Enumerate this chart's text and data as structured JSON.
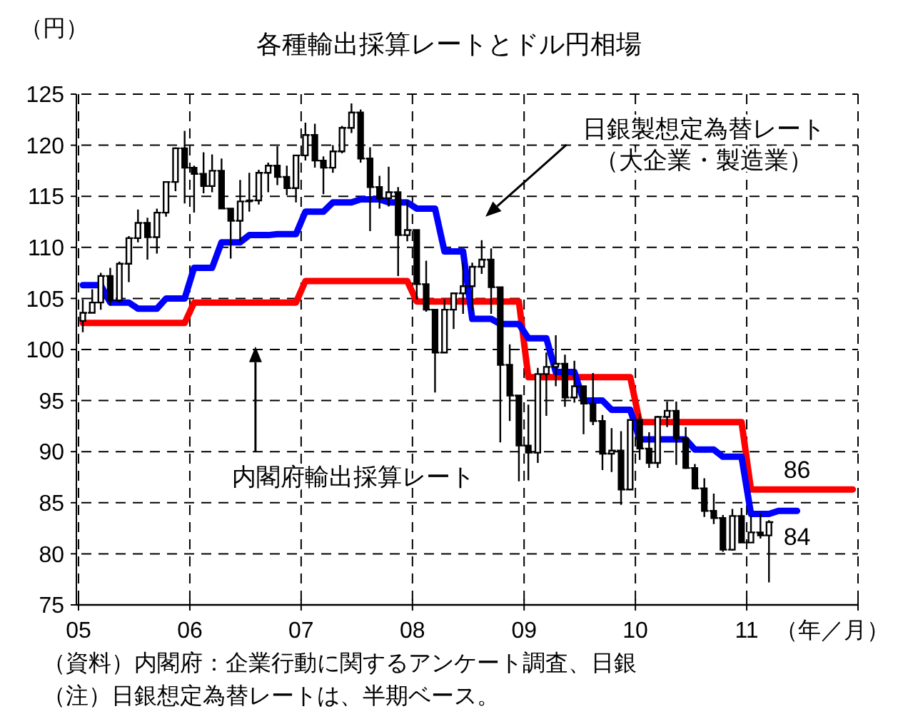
{
  "chart_data": {
    "type": "line",
    "title": "各種輸出採算レートとドル円相場",
    "ylabel": "（円）",
    "xlabel": "（年／月）",
    "x": [
      "2005-01-15",
      "2005-02-15",
      "2005-03-15",
      "2005-04-15",
      "2005-05-15",
      "2005-06-15",
      "2005-07-15",
      "2005-08-15",
      "2005-09-15",
      "2005-10-15",
      "2005-11-15",
      "2005-12-15",
      "2006-01-15",
      "2006-02-15",
      "2006-03-15",
      "2006-04-15",
      "2006-05-15",
      "2006-06-15",
      "2006-07-15",
      "2006-08-15",
      "2006-09-15",
      "2006-10-15",
      "2006-11-15",
      "2006-12-15",
      "2007-01-15",
      "2007-02-15",
      "2007-03-15",
      "2007-04-15",
      "2007-05-15",
      "2007-06-15",
      "2007-07-15",
      "2007-08-15",
      "2007-09-15",
      "2007-10-15",
      "2007-11-15",
      "2007-12-15",
      "2008-01-15",
      "2008-02-15",
      "2008-03-15",
      "2008-04-15",
      "2008-05-15",
      "2008-06-15",
      "2008-07-15",
      "2008-08-15",
      "2008-09-15",
      "2008-10-15",
      "2008-11-15",
      "2008-12-15",
      "2009-01-15",
      "2009-02-15",
      "2009-03-15",
      "2009-04-15",
      "2009-05-15",
      "2009-06-15",
      "2009-07-15",
      "2009-08-15",
      "2009-09-15",
      "2009-10-15",
      "2009-11-15",
      "2009-12-15",
      "2010-01-15",
      "2010-02-15",
      "2010-03-15",
      "2010-04-15",
      "2010-05-15",
      "2010-06-15",
      "2010-07-15",
      "2010-08-15",
      "2010-09-15",
      "2010-10-15",
      "2010-11-15",
      "2010-12-15",
      "2011-01-15",
      "2011-02-15",
      "2011-03-15",
      "2011-04-15",
      "2011-05-15",
      "2011-06-15",
      "2011-07-15",
      "2011-08-15",
      "2011-09-15",
      "2011-10-15",
      "2011-11-15",
      "2011-12-15"
    ],
    "series": [
      {
        "color": "#ff0000",
        "values": [
          102.6,
          102.6,
          102.6,
          102.6,
          102.6,
          102.6,
          102.6,
          102.6,
          102.6,
          102.6,
          102.6,
          102.6,
          104.6,
          104.6,
          104.6,
          104.6,
          104.6,
          104.6,
          104.6,
          104.6,
          104.6,
          104.6,
          104.6,
          104.6,
          106.7,
          106.7,
          106.7,
          106.7,
          106.7,
          106.7,
          106.7,
          106.7,
          106.7,
          106.7,
          106.7,
          106.7,
          104.7,
          104.7,
          104.7,
          104.7,
          104.7,
          104.7,
          104.7,
          104.7,
          104.7,
          104.7,
          104.7,
          104.7,
          97.3,
          97.3,
          97.3,
          97.3,
          97.3,
          97.3,
          97.3,
          97.3,
          97.3,
          97.3,
          97.3,
          97.3,
          92.9,
          92.9,
          92.9,
          92.9,
          92.9,
          92.9,
          92.9,
          92.9,
          92.9,
          92.9,
          92.9,
          92.9,
          86.3,
          86.3,
          86.3,
          86.3,
          86.3,
          86.3,
          86.3,
          86.3,
          86.3,
          86.3,
          86.3,
          86.3
        ],
        "value_labels": [
          null,
          null,
          null,
          null,
          null,
          null,
          null,
          null,
          null,
          null,
          null,
          null,
          null,
          null,
          null,
          null,
          null,
          null,
          null,
          null,
          null,
          null,
          null,
          null,
          null,
          null,
          null,
          null,
          null,
          null,
          null,
          null,
          null,
          null,
          null,
          null,
          null,
          null,
          null,
          null,
          null,
          null,
          null,
          null,
          null,
          null,
          null,
          null,
          null,
          null,
          null,
          null,
          null,
          null,
          null,
          null,
          null,
          null,
          null,
          null,
          null,
          null,
          null,
          null,
          null,
          null,
          null,
          null,
          null,
          null,
          null,
          null,
          null,
          null,
          null,
          null,
          null,
          "86",
          null,
          null,
          null,
          null,
          null,
          null
        ]
      },
      {
        "color": "#0000ff",
        "values": [
          106.3,
          106.3,
          106.3,
          104.6,
          104.6,
          104.6,
          104.0,
          104.0,
          104.0,
          105.0,
          105.0,
          105.0,
          108.0,
          108.0,
          108.0,
          110.5,
          110.5,
          110.5,
          111.2,
          111.2,
          111.2,
          111.3,
          111.3,
          111.3,
          113.5,
          113.5,
          113.5,
          114.4,
          114.4,
          114.4,
          114.7,
          114.7,
          114.7,
          114.4,
          114.4,
          114.4,
          113.8,
          113.8,
          113.8,
          109.6,
          109.6,
          109.6,
          103.0,
          103.0,
          103.0,
          102.5,
          102.5,
          102.5,
          101.1,
          101.1,
          101.1,
          97.8,
          97.8,
          97.8,
          95.0,
          95.0,
          95.0,
          94.1,
          94.1,
          94.1,
          91.2,
          91.2,
          91.2,
          91.2,
          91.2,
          91.2,
          90.2,
          90.2,
          90.2,
          89.5,
          89.5,
          89.5,
          83.9,
          83.9,
          83.9,
          84.2,
          84.2,
          84.2,
          null,
          null,
          null,
          null,
          null,
          null
        ],
        "value_labels": [
          null,
          null,
          null,
          null,
          null,
          null,
          null,
          null,
          null,
          null,
          null,
          null,
          null,
          null,
          null,
          null,
          null,
          null,
          null,
          null,
          null,
          null,
          null,
          null,
          null,
          null,
          null,
          null,
          null,
          null,
          null,
          null,
          null,
          null,
          null,
          null,
          null,
          null,
          null,
          null,
          null,
          null,
          null,
          null,
          null,
          null,
          null,
          null,
          null,
          null,
          null,
          null,
          null,
          null,
          null,
          null,
          null,
          null,
          null,
          null,
          null,
          null,
          null,
          null,
          null,
          null,
          null,
          null,
          null,
          null,
          null,
          null,
          null,
          null,
          null,
          null,
          null,
          "84",
          null,
          null,
          null,
          null,
          null,
          null
        ]
      },
      {
        "type": "candlestick",
        "color": "#000000",
        "x": [
          "2005-01-15",
          "2005-02-15",
          "2005-03-15",
          "2005-04-15",
          "2005-05-15",
          "2005-06-15",
          "2005-07-15",
          "2005-08-15",
          "2005-09-15",
          "2005-10-15",
          "2005-11-15",
          "2005-12-15",
          "2006-01-15",
          "2006-02-15",
          "2006-03-15",
          "2006-04-15",
          "2006-05-15",
          "2006-06-15",
          "2006-07-15",
          "2006-08-15",
          "2006-09-15",
          "2006-10-15",
          "2006-11-15",
          "2006-12-15",
          "2007-01-15",
          "2007-02-15",
          "2007-03-15",
          "2007-04-15",
          "2007-05-15",
          "2007-06-15",
          "2007-07-15",
          "2007-08-15",
          "2007-09-15",
          "2007-10-15",
          "2007-11-15",
          "2007-12-15",
          "2008-01-15",
          "2008-02-15",
          "2008-03-15",
          "2008-04-15",
          "2008-05-15",
          "2008-06-15",
          "2008-07-15",
          "2008-08-15",
          "2008-09-15",
          "2008-10-15",
          "2008-11-15",
          "2008-12-15",
          "2009-01-15",
          "2009-02-15",
          "2009-03-15",
          "2009-04-15",
          "2009-05-15",
          "2009-06-15",
          "2009-07-15",
          "2009-08-15",
          "2009-09-15",
          "2009-10-15",
          "2009-11-15",
          "2009-12-15",
          "2010-01-15",
          "2010-02-15",
          "2010-03-15",
          "2010-04-15",
          "2010-05-15",
          "2010-06-15",
          "2010-07-15",
          "2010-08-15",
          "2010-09-15",
          "2010-10-15",
          "2010-11-15",
          "2010-12-15",
          "2011-01-15",
          "2011-02-15",
          "2011-03-15"
        ],
        "ohlc": [
          [
            102.8,
            104.9,
            101.7,
            103.6
          ],
          [
            103.6,
            105.9,
            103.6,
            104.6
          ],
          [
            104.6,
            107.5,
            103.9,
            107.2
          ],
          [
            107.2,
            108.0,
            104.3,
            104.8
          ],
          [
            104.8,
            108.6,
            104.6,
            108.4
          ],
          [
            108.4,
            111.1,
            106.6,
            110.9
          ],
          [
            110.9,
            113.7,
            110.5,
            112.4
          ],
          [
            112.4,
            112.9,
            108.8,
            111.0
          ],
          [
            111.0,
            113.8,
            109.4,
            113.4
          ],
          [
            113.4,
            116.4,
            113.0,
            116.4
          ],
          [
            116.4,
            119.8,
            115.5,
            119.7
          ],
          [
            119.7,
            121.4,
            114.3,
            117.8
          ],
          [
            117.8,
            118.0,
            113.4,
            117.2
          ],
          [
            117.2,
            119.3,
            115.3,
            116.0
          ],
          [
            116.0,
            119.1,
            115.4,
            117.5
          ],
          [
            117.5,
            118.7,
            113.8,
            113.8
          ],
          [
            113.8,
            113.8,
            108.9,
            112.6
          ],
          [
            112.6,
            116.6,
            110.6,
            114.5
          ],
          [
            114.5,
            117.3,
            113.5,
            114.6
          ],
          [
            114.6,
            117.6,
            114.2,
            117.3
          ],
          [
            117.3,
            118.3,
            115.4,
            118.0
          ],
          [
            118.0,
            119.9,
            116.1,
            116.9
          ],
          [
            116.9,
            118.0,
            115.1,
            115.8
          ],
          [
            115.8,
            119.0,
            114.4,
            119.0
          ],
          [
            119.0,
            122.2,
            118.5,
            121.0
          ],
          [
            121.0,
            122.1,
            117.8,
            118.5
          ],
          [
            118.5,
            118.9,
            115.2,
            117.8
          ],
          [
            117.8,
            120.0,
            117.3,
            119.4
          ],
          [
            119.4,
            121.9,
            119.2,
            121.7
          ],
          [
            121.7,
            124.1,
            121.2,
            123.2
          ],
          [
            123.2,
            123.5,
            118.3,
            118.7
          ],
          [
            118.7,
            119.8,
            111.6,
            115.9
          ],
          [
            115.9,
            117.0,
            113.8,
            114.8
          ],
          [
            114.8,
            117.9,
            114.0,
            115.4
          ],
          [
            115.4,
            115.9,
            107.2,
            111.2
          ],
          [
            111.2,
            114.6,
            110.6,
            111.7
          ],
          [
            111.7,
            111.7,
            104.9,
            106.4
          ],
          [
            106.4,
            108.7,
            103.7,
            103.9
          ],
          [
            103.9,
            103.9,
            95.8,
            99.7
          ],
          [
            99.7,
            104.9,
            99.7,
            103.9
          ],
          [
            103.9,
            105.5,
            102.0,
            105.5
          ],
          [
            105.5,
            108.5,
            103.5,
            106.2
          ],
          [
            106.2,
            108.5,
            103.8,
            108.1
          ],
          [
            108.1,
            110.7,
            107.4,
            108.8
          ],
          [
            108.8,
            109.9,
            103.5,
            106.1
          ],
          [
            106.1,
            106.1,
            90.9,
            98.5
          ],
          [
            98.5,
            100.5,
            93.0,
            95.5
          ],
          [
            95.5,
            95.5,
            87.1,
            90.6
          ],
          [
            90.6,
            94.6,
            87.2,
            89.9
          ],
          [
            89.9,
            98.2,
            88.9,
            97.6
          ],
          [
            97.6,
            99.7,
            93.5,
            98.3
          ],
          [
            98.3,
            101.4,
            96.4,
            98.6
          ],
          [
            98.6,
            99.5,
            94.4,
            95.3
          ],
          [
            95.3,
            98.9,
            94.8,
            96.4
          ],
          [
            96.4,
            96.4,
            91.7,
            94.7
          ],
          [
            94.7,
            97.7,
            92.6,
            93.0
          ],
          [
            93.0,
            93.6,
            88.2,
            89.8
          ],
          [
            89.8,
            92.3,
            88.0,
            90.1
          ],
          [
            90.1,
            92.0,
            84.8,
            86.3
          ],
          [
            86.3,
            93.1,
            86.3,
            93.1
          ],
          [
            93.1,
            93.7,
            89.2,
            90.3
          ],
          [
            90.3,
            91.9,
            88.4,
            88.9
          ],
          [
            88.9,
            93.5,
            88.4,
            93.4
          ],
          [
            93.4,
            94.9,
            92.4,
            94.0
          ],
          [
            94.0,
            94.9,
            88.7,
            91.3
          ],
          [
            91.3,
            92.4,
            88.3,
            88.4
          ],
          [
            88.4,
            88.8,
            86.3,
            86.4
          ],
          [
            86.4,
            87.4,
            83.6,
            84.2
          ],
          [
            84.2,
            85.9,
            82.9,
            83.5
          ],
          [
            83.5,
            83.8,
            80.2,
            80.4
          ],
          [
            80.4,
            84.4,
            80.3,
            83.7
          ],
          [
            83.7,
            84.5,
            81.1,
            81.1
          ],
          [
            81.1,
            83.7,
            81.1,
            82.1
          ],
          [
            82.1,
            84.0,
            81.5,
            81.8
          ],
          [
            81.8,
            83.3,
            77.2,
            83.1
          ]
        ]
      }
    ],
    "xlim": [
      "2005",
      "2012"
    ],
    "xticks": [
      {
        "value": "2005",
        "label": "05"
      },
      {
        "value": "2006",
        "label": "06"
      },
      {
        "value": "2007",
        "label": "07"
      },
      {
        "value": "2008",
        "label": "08"
      },
      {
        "value": "2009",
        "label": "09"
      },
      {
        "value": "2010",
        "label": "10"
      },
      {
        "value": "2011",
        "label": "11"
      },
      {
        "value": "2012",
        "label": null
      }
    ],
    "ylim": [
      75,
      125
    ],
    "yticks": [
      75,
      80,
      85,
      90,
      95,
      100,
      105,
      110,
      115,
      120,
      125
    ],
    "grid": true,
    "annotations": [
      "内閣府輸出採算レート",
      "日銀製想定為替レート（大企業・製造業）",
      "（資料）内閣府：企業行動に関するアンケート調査、日銀",
      "（注）日銀想定為替レートは、半期ベース。"
    ]
  }
}
